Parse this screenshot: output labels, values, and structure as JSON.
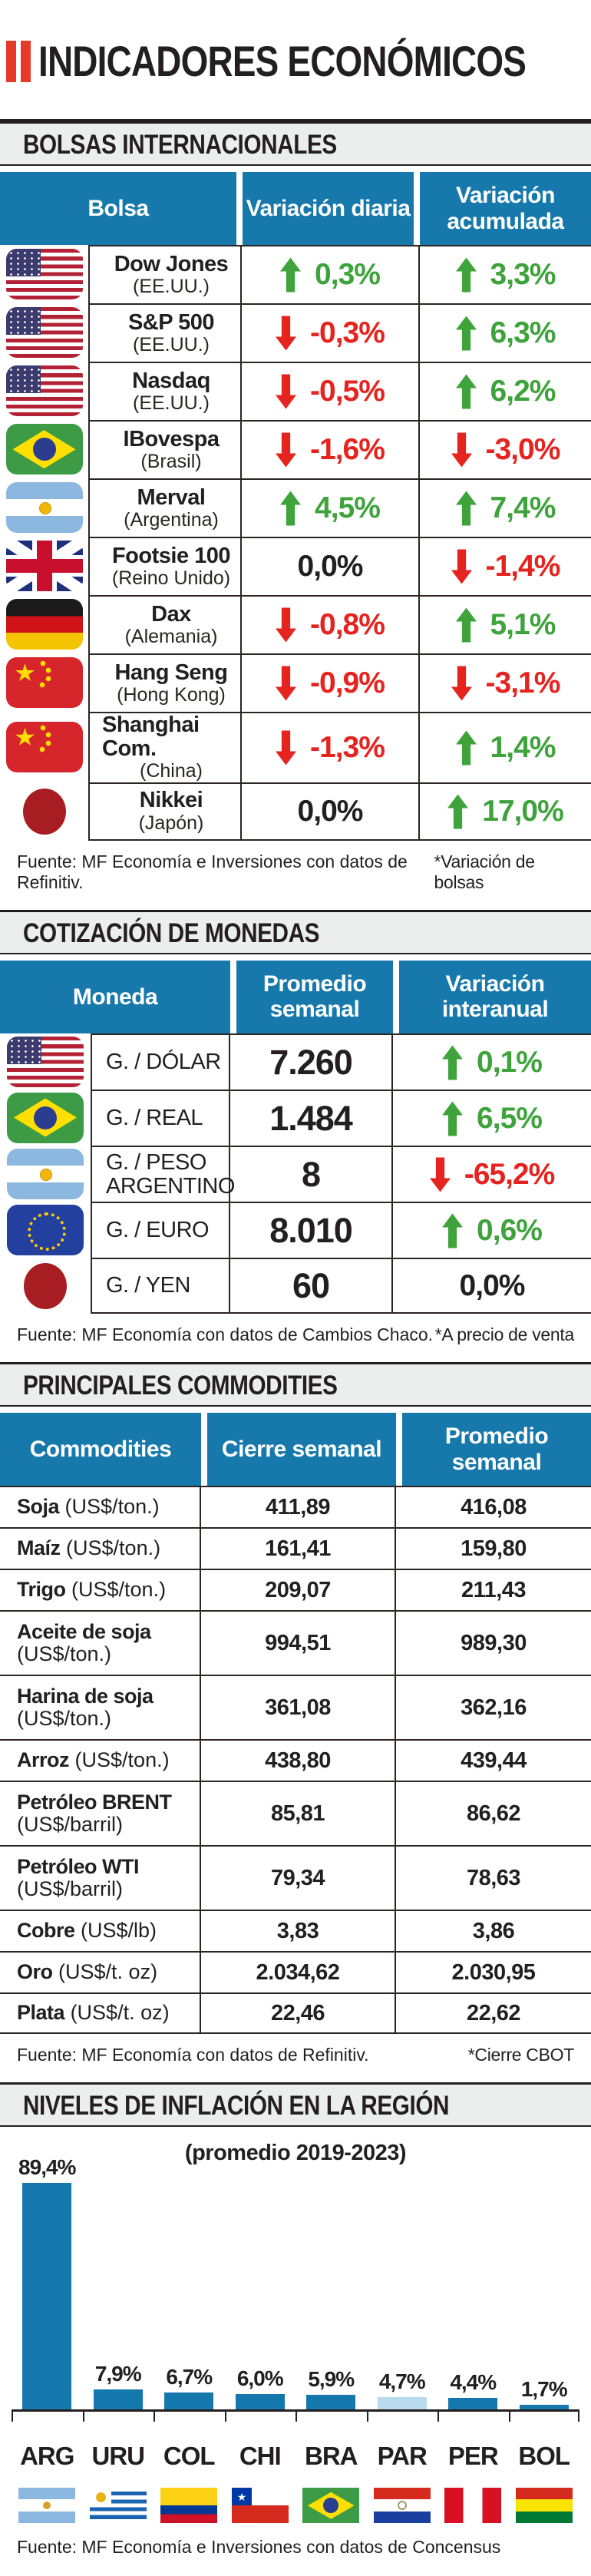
{
  "colors": {
    "header_blue": "#1779ab",
    "up_green": "#3fa33c",
    "down_red": "#e5231f",
    "bar_blue": "#1478ad",
    "bar_light_blue": "#b9d9ec",
    "band_gray": "#eceeed",
    "title_red": "#e5392a"
  },
  "masthead": {
    "title": "INDICADORES ECONÓMICOS"
  },
  "bolsas": {
    "heading": "BOLSAS INTERNACIONALES",
    "columns": {
      "c1": "Bolsa",
      "c2": "Variación diaria",
      "c3": "Variación acumulada"
    },
    "rows": [
      {
        "flag": "us-flag",
        "name": "Dow Jones",
        "sub": "(EE.UU.)",
        "daily": "0,3%",
        "daily_dir": "up",
        "accum": "3,3%",
        "accum_dir": "up"
      },
      {
        "flag": "us-flag",
        "name": "S&P 500",
        "sub": "(EE.UU.)",
        "daily": "-0,3%",
        "daily_dir": "down",
        "accum": "6,3%",
        "accum_dir": "up"
      },
      {
        "flag": "us-flag",
        "name": "Nasdaq",
        "sub": "(EE.UU.)",
        "daily": "-0,5%",
        "daily_dir": "down",
        "accum": "6,2%",
        "accum_dir": "up"
      },
      {
        "flag": "brazil-flag",
        "name": "IBovespa",
        "sub": "(Brasil)",
        "daily": "-1,6%",
        "daily_dir": "down",
        "accum": "-3,0%",
        "accum_dir": "down"
      },
      {
        "flag": "argentina-flag",
        "name": "Merval",
        "sub": "(Argentina)",
        "daily": "4,5%",
        "daily_dir": "up",
        "accum": "7,4%",
        "accum_dir": "up"
      },
      {
        "flag": "uk-flag",
        "name": "Footsie 100",
        "sub": "(Reino Unido)",
        "daily": "0,0%",
        "daily_dir": "none",
        "accum": "-1,4%",
        "accum_dir": "down"
      },
      {
        "flag": "germany-flag",
        "name": "Dax",
        "sub": "(Alemania)",
        "daily": "-0,8%",
        "daily_dir": "down",
        "accum": "5,1%",
        "accum_dir": "up"
      },
      {
        "flag": "china-flag",
        "name": "Hang Seng",
        "sub": "(Hong Kong)",
        "daily": "-0,9%",
        "daily_dir": "down",
        "accum": "-3,1%",
        "accum_dir": "down"
      },
      {
        "flag": "china-flag",
        "name": "Shanghai Com.",
        "sub": "(China)",
        "daily": "-1,3%",
        "daily_dir": "down",
        "accum": "1,4%",
        "accum_dir": "up"
      },
      {
        "flag": "japan-flag",
        "name": "Nikkei",
        "sub": "(Japón)",
        "daily": "0,0%",
        "daily_dir": "none",
        "accum": "17,0%",
        "accum_dir": "up"
      }
    ],
    "source": "Fuente: MF Economía e Inversiones con datos de Refinitiv.",
    "note": "*Variación de bolsas"
  },
  "monedas": {
    "heading": "COTIZACIÓN DE MONEDAS",
    "columns": {
      "c1": "Moneda",
      "c2": "Promedio semanal",
      "c3": "Variación interanual"
    },
    "rows": [
      {
        "flag": "us-flag",
        "name": "G. / DÓLAR",
        "avg": "7.260",
        "var": "0,1%",
        "var_dir": "up"
      },
      {
        "flag": "brazil-flag",
        "name": "G. / REAL",
        "avg": "1.484",
        "var": "6,5%",
        "var_dir": "up"
      },
      {
        "flag": "argentina-flag",
        "name": "G. / PESO ARGENTINO",
        "avg": "8",
        "var": "-65,2%",
        "var_dir": "down"
      },
      {
        "flag": "eu-flag",
        "name": "G. / EURO",
        "avg": "8.010",
        "var": "0,6%",
        "var_dir": "up"
      },
      {
        "flag": "japan-flag",
        "name": "G. / YEN",
        "avg": "60",
        "var": "0,0%",
        "var_dir": "none"
      }
    ],
    "source": "Fuente: MF Economía con datos de Cambios Chaco.",
    "note": "*A precio de venta"
  },
  "commodities": {
    "heading": "PRINCIPALES COMMODITIES",
    "columns": {
      "c1": "Commodities",
      "c2": "Cierre semanal",
      "c3": "Promedio semanal"
    },
    "rows": [
      {
        "name": "Soja",
        "unit": "(US$/ton.)",
        "close": "411,89",
        "avg": "416,08"
      },
      {
        "name": "Maíz",
        "unit": "(US$/ton.)",
        "close": "161,41",
        "avg": "159,80"
      },
      {
        "name": "Trigo",
        "unit": "(US$/ton.)",
        "close": "209,07",
        "avg": "211,43"
      },
      {
        "name": "Aceite de soja",
        "unit": "(US$/ton.)",
        "close": "994,51",
        "avg": "989,30"
      },
      {
        "name": "Harina de soja",
        "unit": "(US$/ton.)",
        "close": "361,08",
        "avg": "362,16"
      },
      {
        "name": "Arroz",
        "unit": "(US$/ton.)",
        "close": "438,80",
        "avg": "439,44"
      },
      {
        "name": "Petróleo BRENT",
        "unit": "(US$/barril)",
        "close": "85,81",
        "avg": "86,62"
      },
      {
        "name": "Petróleo WTI",
        "unit": "(US$/barril)",
        "close": "79,34",
        "avg": "78,63"
      },
      {
        "name": "Cobre",
        "unit": "(US$/lb)",
        "close": "3,83",
        "avg": "3,86"
      },
      {
        "name": "Oro",
        "unit": "(US$/t. oz)",
        "close": "2.034,62",
        "avg": "2.030,95"
      },
      {
        "name": "Plata",
        "unit": "(US$/t. oz)",
        "close": "22,46",
        "avg": "22,62"
      }
    ],
    "source": "Fuente: MF Economía con datos de Refinitiv.",
    "note": "*Cierre CBOT"
  },
  "inflacion": {
    "heading": "NIVELES DE INFLACIÓN EN LA REGIÓN",
    "subtitle": "(promedio 2019-2023)",
    "labels": [
      "89,4%",
      "7,9%",
      "6,7%",
      "6,0%",
      "5,9%",
      "4,7%",
      "4,4%",
      "1,7%"
    ],
    "categories": [
      "ARG",
      "URU",
      "COL",
      "CHI",
      "BRA",
      "PAR",
      "PER",
      "BOL"
    ],
    "source": "Fuente: MF Economía e Inversiones con datos de Concensus"
  },
  "chart_data": [
    {
      "type": "bar",
      "title": "NIVELES DE INFLACIÓN EN LA REGIÓN",
      "subtitle": "(promedio 2019-2023)",
      "categories": [
        "ARG",
        "URU",
        "COL",
        "CHI",
        "BRA",
        "PAR",
        "PER",
        "BOL"
      ],
      "values": [
        89.4,
        7.9,
        6.7,
        6.0,
        5.9,
        4.7,
        4.4,
        1.7
      ],
      "value_labels": [
        "89,4%",
        "7,9%",
        "6,7%",
        "6,0%",
        "5,9%",
        "4,7%",
        "4,4%",
        "1,7%"
      ],
      "xlabel": "",
      "ylabel": "",
      "ylim": [
        0,
        95
      ],
      "grid": false,
      "legend": false,
      "bar_colors": [
        "#1478ad",
        "#1478ad",
        "#1478ad",
        "#1478ad",
        "#1478ad",
        "#b9d9ec",
        "#1478ad",
        "#1478ad"
      ]
    },
    {
      "type": "table",
      "title": "BOLSAS INTERNACIONALES",
      "columns": [
        "Bolsa",
        "Variación diaria",
        "Variación acumulada"
      ],
      "rows": [
        [
          "Dow Jones (EE.UU.)",
          "0,3%",
          "3,3%"
        ],
        [
          "S&P 500 (EE.UU.)",
          "-0,3%",
          "6,3%"
        ],
        [
          "Nasdaq (EE.UU.)",
          "-0,5%",
          "6,2%"
        ],
        [
          "IBovespa (Brasil)",
          "-1,6%",
          "-3,0%"
        ],
        [
          "Merval (Argentina)",
          "4,5%",
          "7,4%"
        ],
        [
          "Footsie 100 (Reino Unido)",
          "0,0%",
          "-1,4%"
        ],
        [
          "Dax (Alemania)",
          "-0,8%",
          "5,1%"
        ],
        [
          "Hang Seng (Hong Kong)",
          "-0,9%",
          "-3,1%"
        ],
        [
          "Shanghai Com. (China)",
          "-1,3%",
          "1,4%"
        ],
        [
          "Nikkei (Japón)",
          "0,0%",
          "17,0%"
        ]
      ]
    },
    {
      "type": "table",
      "title": "COTIZACIÓN DE MONEDAS",
      "columns": [
        "Moneda",
        "Promedio semanal",
        "Variación interanual"
      ],
      "rows": [
        [
          "G. / DÓLAR",
          "7.260",
          "0,1%"
        ],
        [
          "G. / REAL",
          "1.484",
          "6,5%"
        ],
        [
          "G. / PESO ARGENTINO",
          "8",
          "-65,2%"
        ],
        [
          "G. / EURO",
          "8.010",
          "0,6%"
        ],
        [
          "G. / YEN",
          "60",
          "0,0%"
        ]
      ]
    },
    {
      "type": "table",
      "title": "PRINCIPALES COMMODITIES",
      "columns": [
        "Commodities",
        "Cierre semanal",
        "Promedio semanal"
      ],
      "rows": [
        [
          "Soja (US$/ton.)",
          "411,89",
          "416,08"
        ],
        [
          "Maíz (US$/ton.)",
          "161,41",
          "159,80"
        ],
        [
          "Trigo (US$/ton.)",
          "209,07",
          "211,43"
        ],
        [
          "Aceite de soja (US$/ton.)",
          "994,51",
          "989,30"
        ],
        [
          "Harina de soja (US$/ton.)",
          "361,08",
          "362,16"
        ],
        [
          "Arroz (US$/ton.)",
          "438,80",
          "439,44"
        ],
        [
          "Petróleo BRENT (US$/barril)",
          "85,81",
          "86,62"
        ],
        [
          "Petróleo WTI (US$/barril)",
          "79,34",
          "78,63"
        ],
        [
          "Cobre (US$/lb)",
          "3,83",
          "3,86"
        ],
        [
          "Oro (US$/t. oz)",
          "2.034,62",
          "2.030,95"
        ],
        [
          "Plata (US$/t. oz)",
          "22,46",
          "22,62"
        ]
      ]
    }
  ]
}
